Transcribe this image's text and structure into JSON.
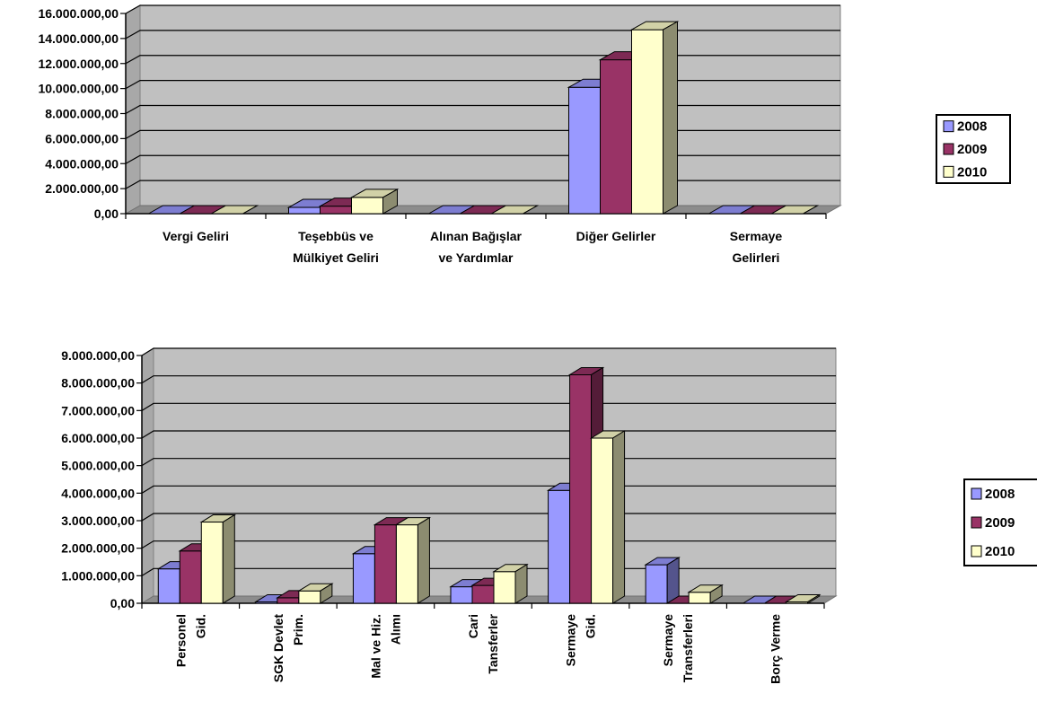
{
  "chart_data": [
    {
      "type": "bar",
      "title": "",
      "xlabel": "",
      "ylabel": "",
      "ylim": [
        0,
        16000000
      ],
      "yticks": [
        0,
        2000000,
        4000000,
        6000000,
        8000000,
        10000000,
        12000000,
        14000000,
        16000000
      ],
      "ytick_labels": [
        "0,00",
        "2.000.000,00",
        "4.000.000,00",
        "6.000.000,00",
        "8.000.000,00",
        "10.000.000,00",
        "12.000.000,00",
        "14.000.000,00",
        "16.000.000,00"
      ],
      "grid": true,
      "three_d": true,
      "legend_position": "right",
      "categories": [
        [
          "Vergi Geliri"
        ],
        [
          "Teşebbüs ve",
          "Mülkiyet Geliri"
        ],
        [
          "Alınan Bağışlar",
          "ve Yardımlar"
        ],
        [
          "Diğer Gelirler"
        ],
        [
          "Sermaye",
          "Gelirleri"
        ]
      ],
      "series": [
        {
          "name": "2008",
          "color": "#9999ff",
          "values": [
            0,
            500000,
            0,
            10100000,
            0
          ]
        },
        {
          "name": "2009",
          "color": "#993366",
          "values": [
            0,
            600000,
            0,
            12300000,
            0
          ]
        },
        {
          "name": "2010",
          "color": "#ffffcc",
          "values": [
            0,
            1300000,
            0,
            14700000,
            0
          ]
        }
      ]
    },
    {
      "type": "bar",
      "title": "",
      "xlabel": "",
      "ylabel": "",
      "ylim": [
        0,
        9000000
      ],
      "yticks": [
        0,
        1000000,
        2000000,
        3000000,
        4000000,
        5000000,
        6000000,
        7000000,
        8000000,
        9000000
      ],
      "ytick_labels": [
        "0,00",
        "1.000.000,00",
        "2.000.000,00",
        "3.000.000,00",
        "4.000.000,00",
        "5.000.000,00",
        "6.000.000,00",
        "7.000.000,00",
        "8.000.000,00",
        "9.000.000,00"
      ],
      "grid": true,
      "three_d": true,
      "legend_position": "right",
      "categories": [
        [
          "Personel",
          "Gid."
        ],
        [
          "SGK Devlet",
          "Prim."
        ],
        [
          "Mal ve Hiz.",
          "Alımı"
        ],
        [
          "Cari",
          "Tansferler"
        ],
        [
          "Sermaye",
          "Gid."
        ],
        [
          "Sermaye",
          "Transferleri"
        ],
        [
          "Borç Verme"
        ]
      ],
      "series": [
        {
          "name": "2008",
          "color": "#9999ff",
          "values": [
            1250000,
            50000,
            1800000,
            600000,
            4100000,
            1400000,
            0
          ]
        },
        {
          "name": "2009",
          "color": "#993366",
          "values": [
            1900000,
            200000,
            2850000,
            650000,
            8300000,
            0,
            0
          ]
        },
        {
          "name": "2010",
          "color": "#ffffcc",
          "values": [
            2950000,
            450000,
            2850000,
            1150000,
            6000000,
            400000,
            50000
          ]
        }
      ]
    }
  ]
}
